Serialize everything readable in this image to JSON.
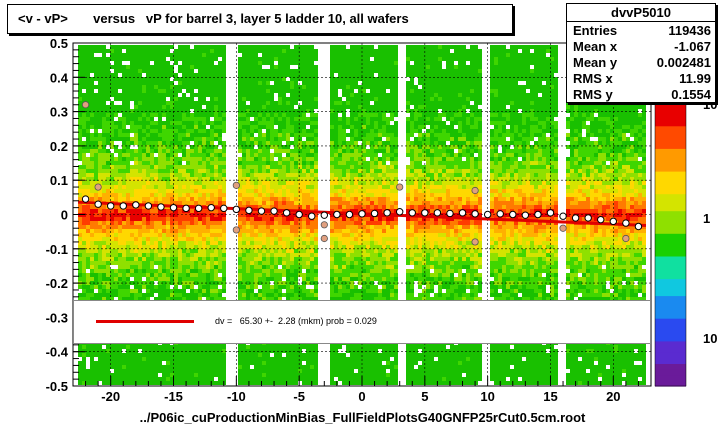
{
  "title": "<v - vP>       versus   vP for barrel 3, layer 5 ladder 10, all wafers",
  "stats": {
    "name": "dvvP5010",
    "rows": [
      {
        "key": "Entries",
        "value": "119436"
      },
      {
        "key": "Mean x",
        "value": "-1.067"
      },
      {
        "key": "Mean y",
        "value": "0.002481"
      },
      {
        "key": "RMS x",
        "value": "11.99"
      },
      {
        "key": "RMS y",
        "value": "0.1554"
      }
    ]
  },
  "fit_text": "dv =   65.30 +-  2.28 (mkm) prob = 0.029",
  "xlabel": "../P06ic_cuProductionMinBias_FullFieldPlotsG40GNFP25rCut0.5cm.root",
  "colors": {
    "fit_line": "#e00000",
    "frame": "#000000"
  },
  "chart_data": {
    "type": "heatmap",
    "x_range": [
      -23,
      23
    ],
    "y_range": [
      -0.5,
      0.5
    ],
    "xticks": [
      -20,
      -15,
      -10,
      -5,
      0,
      5,
      10,
      15,
      20
    ],
    "xtick_labels": [
      "-20",
      "-15",
      "-10",
      "-5",
      "0",
      "5",
      "10",
      "15",
      "20"
    ],
    "yticks": [
      -0.5,
      -0.4,
      -0.3,
      -0.2,
      -0.1,
      0,
      0.1,
      0.2,
      0.3,
      0.4,
      0.5
    ],
    "ytick_labels": [
      "-0.5",
      "-0.4",
      "-0.3",
      "-0.2",
      "-0.1",
      "0",
      "0.1",
      "0.2",
      "0.3",
      "0.4",
      "0.5"
    ],
    "grid": true,
    "z_scale": "log",
    "z_tick_labels": [
      "10",
      "1",
      "10"
    ],
    "profile": {
      "x": [
        -22,
        -21,
        -20,
        -19,
        -18,
        -17,
        -16,
        -15,
        -14,
        -13,
        -12,
        -11,
        -10,
        -9,
        -8,
        -7,
        -6,
        -5,
        -4,
        -3,
        -2,
        -1,
        0,
        1,
        2,
        3,
        4,
        5,
        6,
        7,
        8,
        9,
        10,
        11,
        12,
        13,
        14,
        15,
        16,
        17,
        18,
        19,
        20,
        21,
        22
      ],
      "y": [
        0.045,
        0.03,
        0.025,
        0.025,
        0.028,
        0.025,
        0.022,
        0.02,
        0.018,
        0.018,
        0.02,
        0.018,
        0.015,
        0.012,
        0.01,
        0.01,
        0.005,
        0.0,
        -0.005,
        -0.002,
        0.0,
        0.0,
        0.002,
        0.003,
        0.005,
        0.008,
        0.005,
        0.005,
        0.005,
        0.003,
        0.005,
        0.002,
        0.0,
        0.002,
        0.0,
        -0.002,
        0.0,
        0.005,
        -0.005,
        -0.01,
        -0.01,
        -0.015,
        -0.02,
        -0.025,
        -0.035
      ]
    },
    "outliers": [
      {
        "x": -22,
        "y": 0.32
      },
      {
        "x": -21,
        "y": 0.08
      },
      {
        "x": -10,
        "y": 0.085
      },
      {
        "x": -10,
        "y": -0.045
      },
      {
        "x": -3,
        "y": -0.03
      },
      {
        "x": -3,
        "y": -0.07
      },
      {
        "x": 3,
        "y": 0.08
      },
      {
        "x": 9,
        "y": 0.07
      },
      {
        "x": 9,
        "y": -0.08
      },
      {
        "x": 16,
        "y": -0.04
      },
      {
        "x": 21,
        "y": -0.07
      }
    ],
    "fit": {
      "slope": -0.0015,
      "intercept": 0.002
    }
  }
}
